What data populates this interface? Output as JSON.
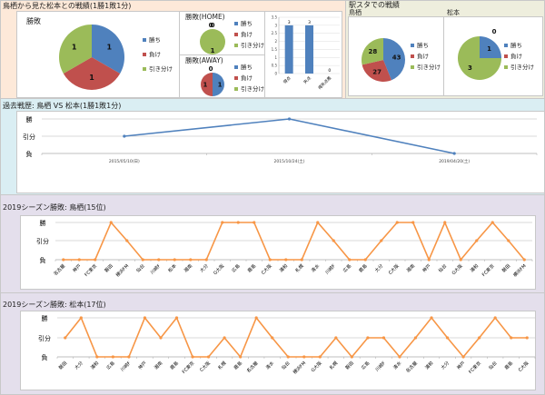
{
  "colors": {
    "win": "#4f81bd",
    "loss": "#c0504d",
    "draw": "#9bbb59",
    "history_line": "#4f81bd",
    "season_line": "#f79646"
  },
  "legend": [
    "勝ち",
    "負け",
    "引き分け"
  ],
  "head_to_head": {
    "title": "鳥栖から見た松本との戦績(1勝1敗1分)",
    "overall": {
      "title": "勝敗",
      "values": [
        1,
        1,
        1
      ]
    },
    "home": {
      "title": "勝敗(HOME)",
      "values": [
        0,
        0,
        1
      ]
    },
    "away": {
      "title": "勝敗(AWAY)",
      "values": [
        1,
        1,
        0
      ]
    },
    "goals": {
      "categories": [
        "得点",
        "失点",
        "得失点差"
      ],
      "values": [
        3,
        3,
        0
      ],
      "ylim": [
        0,
        3.5
      ],
      "ticks": [
        "0",
        "0.5",
        "1",
        "1.5",
        "2",
        "2.5",
        "3",
        "3.5"
      ]
    }
  },
  "stadium": {
    "title": "駅スタでの戦績",
    "tosu": {
      "label": "鳥栖",
      "values": [
        43,
        27,
        28
      ]
    },
    "matsumoto": {
      "label": "松本",
      "values": [
        1,
        0,
        3
      ]
    }
  },
  "y_levels": [
    "勝",
    "引分",
    "負"
  ],
  "history": {
    "title": "過去戦歴: 鳥栖 VS 松本(1勝1敗1分)",
    "dates": [
      "2015/05/10(日)",
      "2015/10/24(土)",
      "2019/04/20(土)"
    ],
    "results": [
      "引分",
      "勝",
      "負"
    ]
  },
  "season_tosu": {
    "title": "2019シーズン勝敗: 鳥栖(15位)",
    "opponents": [
      "名古屋",
      "神戸",
      "FC東京",
      "磐田",
      "横浜FM",
      "仙台",
      "川崎F",
      "松本",
      "湘南",
      "大分",
      "G大阪",
      "広島",
      "鹿島",
      "C大阪",
      "浦和",
      "札幌",
      "清水",
      "川崎F",
      "広島",
      "鹿島",
      "大分",
      "C大阪",
      "湘南",
      "神戸",
      "仙台",
      "G大阪",
      "浦和",
      "FC東京",
      "磐田",
      "横浜FM"
    ],
    "results": [
      "負",
      "負",
      "負",
      "勝",
      "引分",
      "負",
      "負",
      "負",
      "負",
      "負",
      "勝",
      "勝",
      "勝",
      "負",
      "負",
      "負",
      "勝",
      "引分",
      "負",
      "負",
      "引分",
      "勝",
      "勝",
      "負",
      "勝",
      "負",
      "引分",
      "勝",
      "引分",
      "負"
    ]
  },
  "season_matsumoto": {
    "title": "2019シーズン勝敗: 松本(17位)",
    "opponents": [
      "磐田",
      "大分",
      "浦和",
      "広島",
      "川崎F",
      "神戸",
      "湘南",
      "鹿島",
      "FC東京",
      "C大阪",
      "札幌",
      "鹿島",
      "名古屋",
      "清水",
      "仙台",
      "横浜FM",
      "G大阪",
      "札幌",
      "磐田",
      "広島",
      "川崎F",
      "清水",
      "名古屋",
      "浦和",
      "大分",
      "神戸",
      "FC東京",
      "仙台",
      "鹿島",
      "C大阪"
    ],
    "results": [
      "引分",
      "勝",
      "負",
      "負",
      "負",
      "勝",
      "引分",
      "勝",
      "負",
      "負",
      "引分",
      "負",
      "勝",
      "引分",
      "負",
      "負",
      "負",
      "引分",
      "負",
      "引分",
      "引分",
      "負",
      "引分",
      "勝",
      "引分",
      "負",
      "引分",
      "勝",
      "引分",
      "引分"
    ]
  }
}
